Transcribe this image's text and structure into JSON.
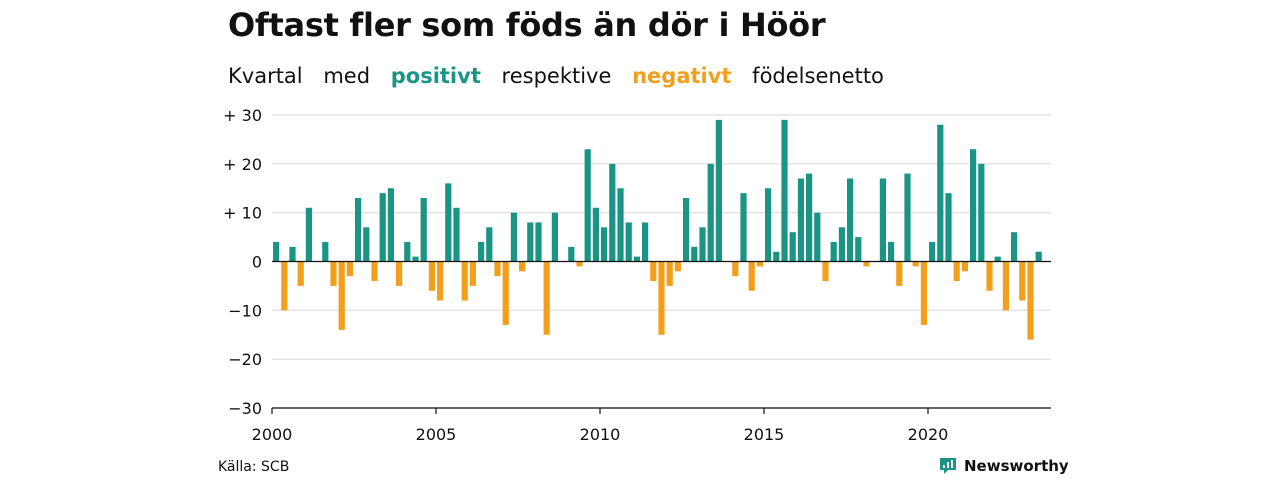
{
  "title": "Oftast fler som föds än dör i Höör",
  "subtitle": {
    "part1": "Kvartal",
    "part2": "med",
    "positive_word": "positivt",
    "part3": "respektive",
    "negative_word": "negativt",
    "part4": "födelsenetto"
  },
  "source": "Källa: SCB",
  "brand": {
    "name": "Newsworthy",
    "icon": "newsworthy-logo-icon"
  },
  "colors": {
    "positive": "#1a9485",
    "negative": "#f2a01b",
    "grid": "#dddddd",
    "axis": "#111111",
    "text": "#111111"
  },
  "chart_data": {
    "type": "bar",
    "title": "Oftast fler som föds än dör i Höör",
    "subtitle": "Kvartal med positivt respektive negativt födelsenetto",
    "x_tick_labels": [
      "2000",
      "2005",
      "2010",
      "2015",
      "2020"
    ],
    "y_tick_labels": [
      "+ 30",
      "+ 20",
      "+ 10",
      "0",
      "−10",
      "−20",
      "−30"
    ],
    "y_ticks": [
      30,
      20,
      10,
      0,
      -10,
      -20,
      -30
    ],
    "ylim": [
      -30,
      30
    ],
    "xlim": [
      2000,
      2023.75
    ],
    "grid": true,
    "start_year": 2000,
    "quarters_per_year": 4,
    "values": [
      4,
      -10,
      3,
      -5,
      11,
      0,
      4,
      -5,
      -14,
      -3,
      13,
      7,
      -4,
      14,
      15,
      -5,
      4,
      1,
      13,
      -6,
      -8,
      16,
      11,
      -8,
      -5,
      4,
      7,
      -3,
      -13,
      10,
      -2,
      8,
      8,
      -15,
      10,
      0,
      3,
      -1,
      23,
      11,
      7,
      20,
      15,
      8,
      1,
      8,
      -4,
      -15,
      -5,
      -2,
      13,
      3,
      7,
      20,
      29,
      0,
      -3,
      14,
      -6,
      -1,
      15,
      2,
      29,
      6,
      17,
      18,
      10,
      -4,
      4,
      7,
      17,
      5,
      -1,
      0,
      17,
      4,
      -5,
      18,
      -1,
      -13,
      4,
      28,
      14,
      -4,
      -2,
      23,
      20,
      -6,
      1,
      -10,
      6,
      -8,
      -16,
      2
    ]
  }
}
